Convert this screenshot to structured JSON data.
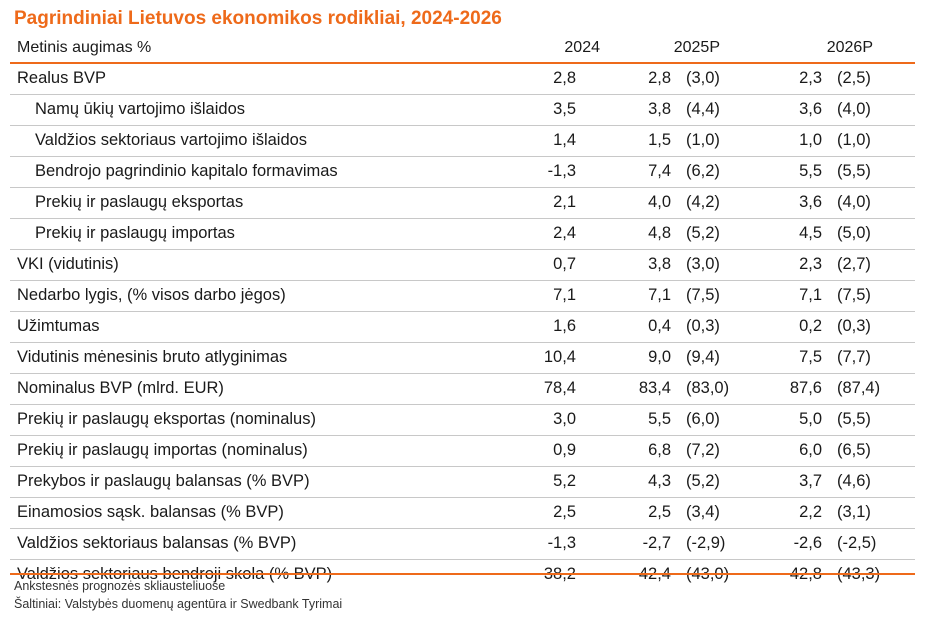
{
  "title": "Pagrindiniai Lietuvos ekonomikos rodikliai, 2024-2026",
  "header": {
    "label": "Metinis augimas %",
    "y2024": "2024",
    "y2025": "2025P",
    "y2026": "2026P"
  },
  "rows": [
    {
      "label": "Realus BVP",
      "indent": false,
      "v2024": "2,8",
      "v2025": "2,8",
      "p2025": "(3,0)",
      "v2026": "2,3",
      "p2026": "(2,5)"
    },
    {
      "label": "Namų ūkių vartojimo išlaidos",
      "indent": true,
      "v2024": "3,5",
      "v2025": "3,8",
      "p2025": "(4,4)",
      "v2026": "3,6",
      "p2026": "(4,0)"
    },
    {
      "label": "Valdžios sektoriaus vartojimo išlaidos",
      "indent": true,
      "v2024": "1,4",
      "v2025": "1,5",
      "p2025": "(1,0)",
      "v2026": "1,0",
      "p2026": "(1,0)"
    },
    {
      "label": "Bendrojo pagrindinio kapitalo formavimas",
      "indent": true,
      "v2024": "-1,3",
      "v2025": "7,4",
      "p2025": "(6,2)",
      "v2026": "5,5",
      "p2026": "(5,5)"
    },
    {
      "label": "Prekių ir paslaugų eksportas",
      "indent": true,
      "v2024": "2,1",
      "v2025": "4,0",
      "p2025": "(4,2)",
      "v2026": "3,6",
      "p2026": "(4,0)"
    },
    {
      "label": "Prekių ir paslaugų importas",
      "indent": true,
      "v2024": "2,4",
      "v2025": "4,8",
      "p2025": "(5,2)",
      "v2026": "4,5",
      "p2026": "(5,0)"
    },
    {
      "label": "VKI (vidutinis)",
      "indent": false,
      "v2024": "0,7",
      "v2025": "3,8",
      "p2025": "(3,0)",
      "v2026": "2,3",
      "p2026": "(2,7)"
    },
    {
      "label": "Nedarbo lygis, (% visos darbo jėgos)",
      "indent": false,
      "v2024": "7,1",
      "v2025": "7,1",
      "p2025": "(7,5)",
      "v2026": "7,1",
      "p2026": "(7,5)"
    },
    {
      "label": "Užimtumas",
      "indent": false,
      "v2024": "1,6",
      "v2025": "0,4",
      "p2025": "(0,3)",
      "v2026": "0,2",
      "p2026": "(0,3)"
    },
    {
      "label": "Vidutinis mėnesinis bruto atlyginimas",
      "indent": false,
      "v2024": "10,4",
      "v2025": "9,0",
      "p2025": "(9,4)",
      "v2026": "7,5",
      "p2026": "(7,7)"
    },
    {
      "label": "Nominalus BVP (mlrd. EUR)",
      "indent": false,
      "v2024": "78,4",
      "v2025": "83,4",
      "p2025": "(83,0)",
      "v2026": "87,6",
      "p2026": "(87,4)"
    },
    {
      "label": "Prekių ir paslaugų eksportas (nominalus)",
      "indent": false,
      "v2024": "3,0",
      "v2025": "5,5",
      "p2025": "(6,0)",
      "v2026": "5,0",
      "p2026": "(5,5)"
    },
    {
      "label": "Prekių ir paslaugų importas (nominalus)",
      "indent": false,
      "v2024": "0,9",
      "v2025": "6,8",
      "p2025": "(7,2)",
      "v2026": "6,0",
      "p2026": "(6,5)"
    },
    {
      "label": "Prekybos ir paslaugų balansas (% BVP)",
      "indent": false,
      "v2024": "5,2",
      "v2025": "4,3",
      "p2025": "(5,2)",
      "v2026": "3,7",
      "p2026": "(4,6)"
    },
    {
      "label": "Einamosios sąsk. balansas (% BVP)",
      "indent": false,
      "v2024": "2,5",
      "v2025": "2,5",
      "p2025": "(3,4)",
      "v2026": "2,2",
      "p2026": "(3,1)"
    },
    {
      "label": "Valdžios sektoriaus balansas (% BVP)",
      "indent": false,
      "v2024": "-1,3",
      "v2025": "-2,7",
      "p2025": "(-2,9)",
      "v2026": "-2,6",
      "p2026": "(-2,5)"
    },
    {
      "label": "Valdžios sektoriaus bendroji skola (% BVP)",
      "indent": false,
      "v2024": "38,2",
      "v2025": "42,4",
      "p2025": "(43,0)",
      "v2026": "42,8",
      "p2026": "(43,3)"
    }
  ],
  "footnotes": {
    "note": "Ankstesnės prognozės skliausteliuose",
    "source": "Šaltiniai: Valstybės duomenų agentūra ir Swedbank Tyrimai"
  },
  "colors": {
    "accent": "#ee6a1a",
    "divider": "#c8c8c8"
  }
}
